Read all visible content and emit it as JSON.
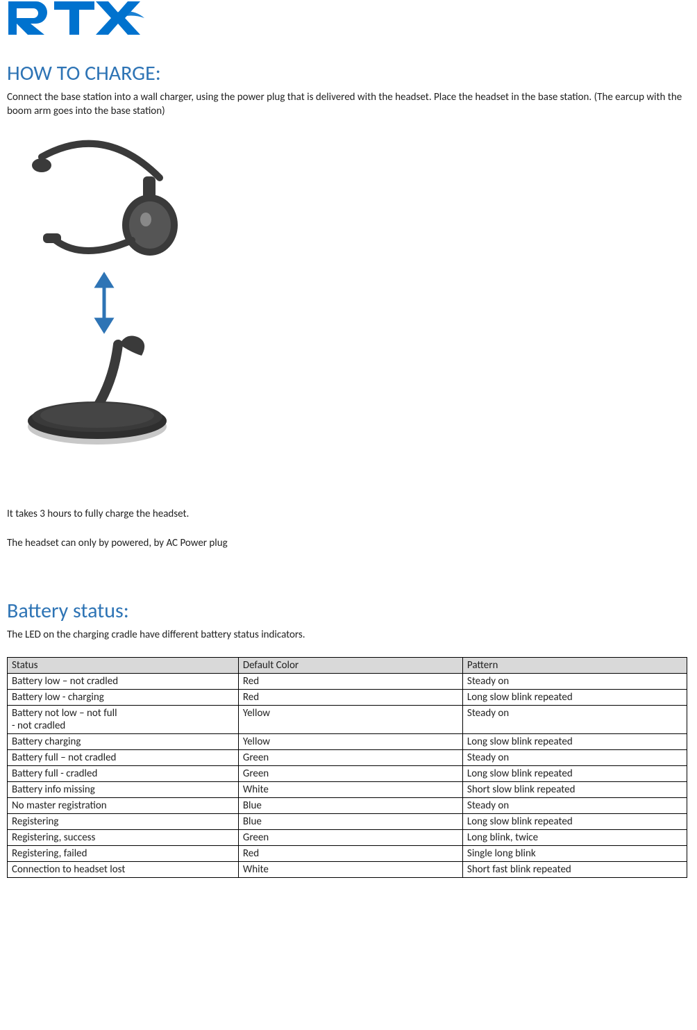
{
  "logo": {
    "text": "RTX",
    "color": "#0072ce"
  },
  "section1": {
    "heading": "HOW TO CHARGE:",
    "intro": "Connect the base station into a wall charger, using the power plug that is delivered with the headset. Place the headset in the base station. (The earcup with the boom arm goes into the base station)",
    "note1": "It takes 3 hours to fully charge the headset.",
    "note2": "The headset can only by powered, by AC Power plug"
  },
  "section2": {
    "heading": "Battery status:",
    "intro": "The LED on the charging cradle have different battery status indicators."
  },
  "table": {
    "header_bg": "#d9d9d9",
    "border_color": "#000000",
    "columns": [
      "Status",
      "Default Color",
      "Pattern"
    ],
    "col_widths": [
      "34%",
      "33%",
      "33%"
    ],
    "rows": [
      [
        "Battery low – not cradled",
        "Red",
        "Steady on"
      ],
      [
        "Battery low - charging",
        "Red",
        "Long slow blink repeated"
      ],
      [
        "Battery not low – not full\n- not cradled",
        "Yellow",
        "Steady on"
      ],
      [
        "Battery charging",
        "Yellow",
        "Long slow blink repeated"
      ],
      [
        "Battery full – not cradled",
        "Green",
        "Steady on"
      ],
      [
        "Battery full - cradled",
        "Green",
        "Long slow blink repeated"
      ],
      [
        "Battery info missing",
        "White",
        "Short slow blink repeated"
      ],
      [
        "No master registration",
        "Blue",
        "Steady on"
      ],
      [
        "Registering",
        "Blue",
        "Long slow blink repeated"
      ],
      [
        "Registering, success",
        "Green",
        "Long blink, twice"
      ],
      [
        "Registering, failed",
        "Red",
        "Single long blink"
      ],
      [
        "Connection to headset lost",
        "White",
        "Short fast blink repeated"
      ]
    ]
  },
  "illustration": {
    "arrow_color": "#2e74b5",
    "headset_body": "#3a3a3a",
    "headset_highlight": "#6b6b6b",
    "base_dark": "#2f2f2f",
    "base_light": "#c8c8c8"
  }
}
